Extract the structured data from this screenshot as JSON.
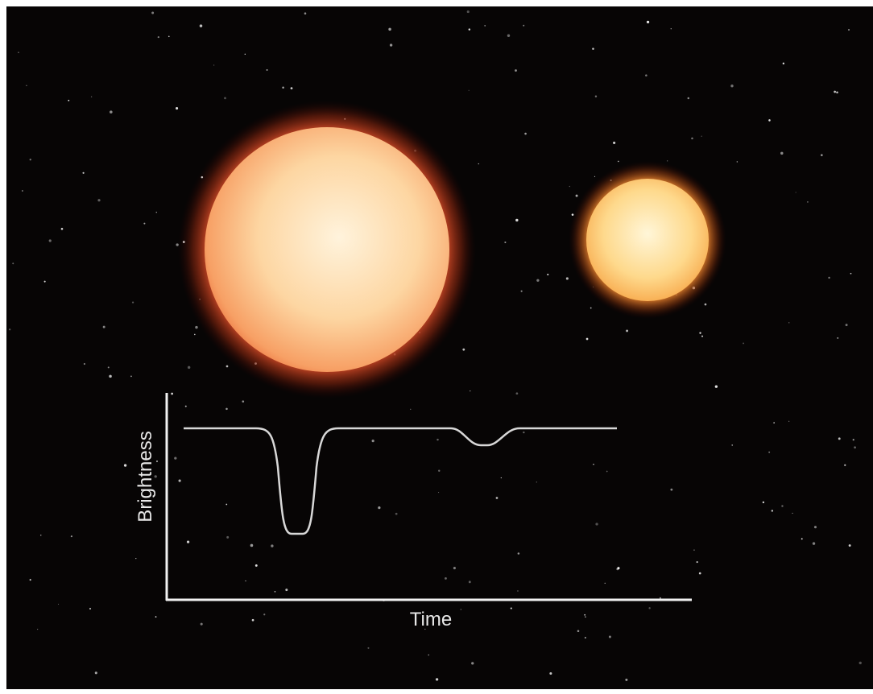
{
  "axis_labels": {
    "y": "Brightness",
    "x": "Time"
  }
}
